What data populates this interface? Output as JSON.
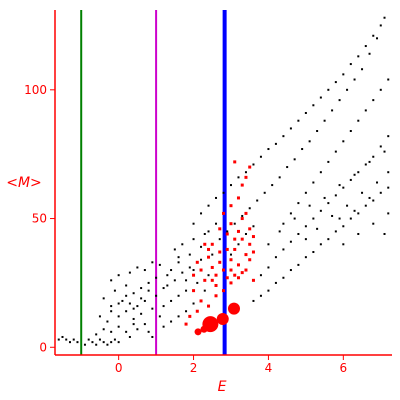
{
  "chart_data": {
    "type": "scatter",
    "xlabel": "E",
    "ylabel": "<M>",
    "xlim": [
      -1.7,
      7.3
    ],
    "ylim": [
      -3,
      131
    ],
    "x_ticks": [
      0,
      2,
      4,
      6
    ],
    "y_ticks": [
      0,
      50,
      100
    ],
    "tick_labels_x": [
      "0",
      "2",
      "4",
      "6"
    ],
    "tick_labels_y": [
      "0",
      "50",
      "100"
    ],
    "grid": false,
    "colors": {
      "axes": "#ff0000",
      "background_points": "#000000",
      "highlight_points": "#ff0000"
    },
    "vertical_lines": [
      {
        "x": -1.0,
        "color": "#008000"
      },
      {
        "x": 1.0,
        "color": "#cc00cc"
      },
      {
        "x": 2.83,
        "color": "#0000ff"
      }
    ],
    "large_markers": [
      {
        "x": 2.45,
        "y": 9,
        "size": "large"
      },
      {
        "x": 2.78,
        "y": 11,
        "size": "medium"
      },
      {
        "x": 3.08,
        "y": 15,
        "size": "medium"
      },
      {
        "x": 2.12,
        "y": 6,
        "size": "small"
      },
      {
        "x": 2.28,
        "y": 7,
        "size": "small"
      }
    ],
    "series": [
      {
        "name": "",
        "color": "#000000",
        "points": [
          [
            -1.6,
            3
          ],
          [
            -1.5,
            4
          ],
          [
            -1.4,
            3
          ],
          [
            -1.3,
            2
          ],
          [
            -1.2,
            3
          ],
          [
            -1.1,
            2
          ],
          [
            -0.9,
            1
          ],
          [
            -0.8,
            3
          ],
          [
            -0.7,
            2
          ],
          [
            -0.6,
            1
          ],
          [
            -0.5,
            3
          ],
          [
            -0.4,
            2
          ],
          [
            -0.3,
            1
          ],
          [
            -0.2,
            2
          ],
          [
            -0.1,
            3
          ],
          [
            0.0,
            2
          ],
          [
            -0.6,
            5
          ],
          [
            -0.4,
            7
          ],
          [
            -0.2,
            6
          ],
          [
            0.0,
            8
          ],
          [
            0.2,
            6
          ],
          [
            0.3,
            4
          ],
          [
            0.4,
            9
          ],
          [
            0.5,
            7
          ],
          [
            -0.3,
            10
          ],
          [
            0.0,
            12
          ],
          [
            0.2,
            14
          ],
          [
            0.4,
            11
          ],
          [
            0.6,
            13
          ],
          [
            0.7,
            9
          ],
          [
            0.8,
            6
          ],
          [
            0.9,
            4
          ],
          [
            -0.5,
            12
          ],
          [
            -0.2,
            16
          ],
          [
            0.1,
            18
          ],
          [
            0.3,
            17
          ],
          [
            0.5,
            16
          ],
          [
            0.7,
            18
          ],
          [
            0.9,
            15
          ],
          [
            1.1,
            12
          ],
          [
            -0.4,
            19
          ],
          [
            -0.1,
            22
          ],
          [
            0.2,
            24
          ],
          [
            0.4,
            21
          ],
          [
            0.6,
            23
          ],
          [
            0.8,
            25
          ],
          [
            1.0,
            27
          ],
          [
            1.2,
            23
          ],
          [
            -0.2,
            26
          ],
          [
            0.0,
            28
          ],
          [
            0.3,
            29
          ],
          [
            0.5,
            31
          ],
          [
            0.7,
            30
          ],
          [
            0.9,
            33
          ],
          [
            1.1,
            32
          ],
          [
            1.3,
            28
          ],
          [
            1.2,
            8
          ],
          [
            1.4,
            10
          ],
          [
            1.6,
            12
          ],
          [
            1.8,
            14
          ],
          [
            1.4,
            18
          ],
          [
            1.6,
            20
          ],
          [
            1.8,
            22
          ],
          [
            2.0,
            17
          ],
          [
            1.3,
            24
          ],
          [
            1.5,
            26
          ],
          [
            1.7,
            29
          ],
          [
            1.9,
            31
          ],
          [
            2.1,
            25
          ],
          [
            2.3,
            22
          ],
          [
            1.6,
            33
          ],
          [
            1.9,
            36
          ],
          [
            1.5,
            38
          ],
          [
            1.7,
            40
          ],
          [
            2.0,
            42
          ],
          [
            2.2,
            39
          ],
          [
            2.4,
            45
          ],
          [
            2.6,
            48
          ],
          [
            2.0,
            48
          ],
          [
            2.2,
            52
          ],
          [
            2.4,
            55
          ],
          [
            2.6,
            58
          ],
          [
            2.8,
            60
          ],
          [
            3.0,
            63
          ],
          [
            3.2,
            66
          ],
          [
            3.4,
            68
          ],
          [
            3.6,
            71
          ],
          [
            3.8,
            74
          ],
          [
            4.0,
            77
          ],
          [
            4.2,
            79
          ],
          [
            4.4,
            82
          ],
          [
            4.6,
            85
          ],
          [
            4.8,
            88
          ],
          [
            5.0,
            91
          ],
          [
            5.2,
            94
          ],
          [
            5.4,
            97
          ],
          [
            5.6,
            100
          ],
          [
            5.8,
            103
          ],
          [
            6.0,
            106
          ],
          [
            6.2,
            110
          ],
          [
            6.4,
            113
          ],
          [
            6.6,
            117
          ],
          [
            6.8,
            121
          ],
          [
            7.0,
            125
          ],
          [
            7.1,
            128
          ],
          [
            6.9,
            120
          ],
          [
            6.7,
            114
          ],
          [
            6.5,
            108
          ],
          [
            6.3,
            104
          ],
          [
            6.1,
            100
          ],
          [
            5.9,
            96
          ],
          [
            5.7,
            92
          ],
          [
            5.5,
            88
          ],
          [
            5.3,
            84
          ],
          [
            5.1,
            80
          ],
          [
            4.9,
            77
          ],
          [
            4.7,
            73
          ],
          [
            4.5,
            70
          ],
          [
            4.3,
            66
          ],
          [
            4.1,
            63
          ],
          [
            3.9,
            60
          ],
          [
            3.7,
            57
          ],
          [
            3.5,
            54
          ],
          [
            3.3,
            51
          ],
          [
            3.1,
            48
          ],
          [
            2.9,
            45
          ],
          [
            2.7,
            42
          ],
          [
            2.5,
            40
          ],
          [
            3.6,
            18
          ],
          [
            3.8,
            20
          ],
          [
            4.0,
            22
          ],
          [
            4.2,
            25
          ],
          [
            4.4,
            27
          ],
          [
            4.6,
            30
          ],
          [
            4.8,
            32
          ],
          [
            5.0,
            35
          ],
          [
            5.2,
            37
          ],
          [
            5.4,
            40
          ],
          [
            5.6,
            42
          ],
          [
            5.8,
            45
          ],
          [
            6.0,
            47
          ],
          [
            6.2,
            50
          ],
          [
            6.4,
            52
          ],
          [
            6.6,
            55
          ],
          [
            6.8,
            57
          ],
          [
            7.0,
            60
          ],
          [
            7.2,
            62
          ],
          [
            3.8,
            28
          ],
          [
            4.0,
            31
          ],
          [
            4.2,
            35
          ],
          [
            4.4,
            38
          ],
          [
            4.6,
            41
          ],
          [
            4.8,
            44
          ],
          [
            5.0,
            47
          ],
          [
            5.2,
            50
          ],
          [
            5.4,
            53
          ],
          [
            5.6,
            56
          ],
          [
            5.8,
            59
          ],
          [
            6.0,
            62
          ],
          [
            6.2,
            65
          ],
          [
            6.4,
            68
          ],
          [
            6.6,
            71
          ],
          [
            6.8,
            74
          ],
          [
            7.0,
            78
          ],
          [
            7.2,
            82
          ],
          [
            4.4,
            48
          ],
          [
            4.6,
            52
          ],
          [
            4.8,
            56
          ],
          [
            5.0,
            60
          ],
          [
            5.2,
            64
          ],
          [
            5.4,
            68
          ],
          [
            5.6,
            72
          ],
          [
            5.8,
            76
          ],
          [
            6.0,
            80
          ],
          [
            6.2,
            84
          ],
          [
            6.4,
            88
          ],
          [
            6.6,
            92
          ],
          [
            6.8,
            96
          ],
          [
            7.0,
            100
          ],
          [
            7.2,
            104
          ],
          [
            3.0,
            36
          ],
          [
            3.2,
            40
          ],
          [
            3.4,
            44
          ],
          [
            3.6,
            47
          ],
          [
            4.0,
            40
          ],
          [
            4.3,
            45
          ],
          [
            4.7,
            50
          ],
          [
            5.1,
            55
          ],
          [
            5.5,
            58
          ],
          [
            5.9,
            63
          ],
          [
            6.3,
            67
          ],
          [
            6.7,
            72
          ],
          [
            7.1,
            76
          ],
          [
            5.0,
            42
          ],
          [
            5.3,
            46
          ],
          [
            5.7,
            51
          ],
          [
            6.1,
            55
          ],
          [
            6.5,
            60
          ],
          [
            6.9,
            64
          ],
          [
            7.2,
            68
          ],
          [
            6.0,
            40
          ],
          [
            6.4,
            44
          ],
          [
            6.8,
            48
          ],
          [
            7.2,
            52
          ],
          [
            7.1,
            44
          ],
          [
            6.7,
            58
          ],
          [
            6.3,
            53
          ],
          [
            5.9,
            50
          ],
          [
            1.0,
            20
          ],
          [
            1.2,
            16
          ],
          [
            0.8,
            22
          ],
          [
            0.6,
            19
          ],
          [
            0.4,
            15
          ],
          [
            0.2,
            20
          ],
          [
            0.0,
            17
          ],
          [
            -0.2,
            14
          ],
          [
            1.4,
            30
          ],
          [
            1.6,
            35
          ],
          [
            1.8,
            26
          ],
          [
            2.0,
            30
          ],
          [
            2.2,
            34
          ],
          [
            2.4,
            28
          ],
          [
            2.5,
            36
          ],
          [
            2.3,
            44
          ]
        ]
      },
      {
        "name": "",
        "color": "#ff0000",
        "points": [
          [
            2.0,
            28
          ],
          [
            2.1,
            33
          ],
          [
            2.2,
            30
          ],
          [
            2.3,
            26
          ],
          [
            2.4,
            35
          ],
          [
            2.5,
            31
          ],
          [
            2.6,
            28
          ],
          [
            2.7,
            33
          ],
          [
            2.8,
            30
          ],
          [
            2.9,
            27
          ],
          [
            3.0,
            34
          ],
          [
            3.1,
            38
          ],
          [
            3.2,
            32
          ],
          [
            3.3,
            29
          ],
          [
            3.4,
            36
          ],
          [
            3.5,
            40
          ],
          [
            2.9,
            44
          ],
          [
            3.0,
            48
          ],
          [
            3.1,
            42
          ],
          [
            3.2,
            45
          ],
          [
            3.3,
            50
          ],
          [
            3.4,
            52
          ],
          [
            3.5,
            46
          ],
          [
            3.6,
            43
          ],
          [
            3.0,
            55
          ],
          [
            3.2,
            58
          ],
          [
            3.3,
            63
          ],
          [
            3.4,
            66
          ],
          [
            3.5,
            70
          ],
          [
            3.1,
            72
          ],
          [
            2.8,
            52
          ],
          [
            2.7,
            46
          ],
          [
            2.5,
            40
          ],
          [
            2.4,
            38
          ],
          [
            2.6,
            24
          ],
          [
            2.8,
            22
          ],
          [
            3.0,
            25
          ],
          [
            3.2,
            27
          ],
          [
            3.4,
            30
          ],
          [
            3.6,
            26
          ],
          [
            2.2,
            18
          ],
          [
            2.4,
            16
          ],
          [
            2.6,
            20
          ],
          [
            2.0,
            22
          ],
          [
            1.9,
            12
          ],
          [
            1.8,
            9
          ],
          [
            2.1,
            14
          ],
          [
            2.9,
            38
          ],
          [
            3.0,
            30
          ],
          [
            3.3,
            42
          ],
          [
            3.5,
            34
          ],
          [
            3.6,
            37
          ],
          [
            2.7,
            37
          ],
          [
            2.5,
            26
          ],
          [
            2.3,
            40
          ],
          [
            3.1,
            28
          ]
        ]
      }
    ]
  }
}
